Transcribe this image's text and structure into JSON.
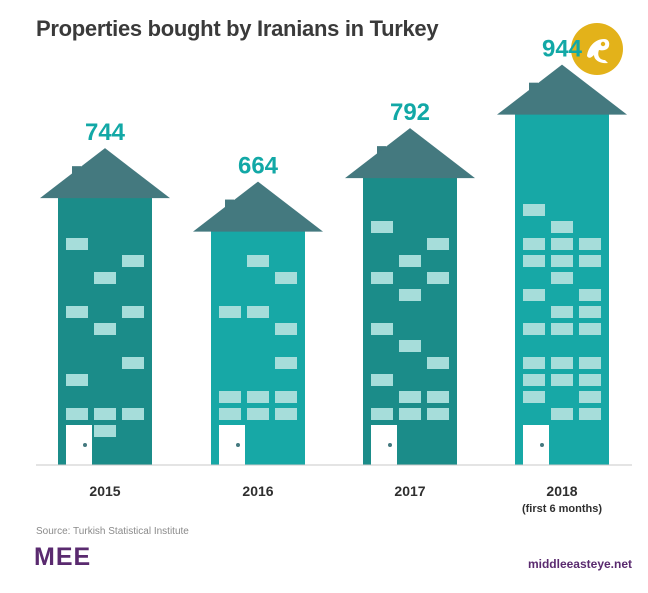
{
  "title": "Properties bought by Iranians in Turkey",
  "chart_data": {
    "type": "bar",
    "categories": [
      "2015",
      "2016",
      "2017",
      "2018"
    ],
    "category_notes": [
      "",
      "",
      "",
      "(first 6 months)"
    ],
    "values": [
      744,
      664,
      792,
      944
    ],
    "colors": {
      "value_label": "#12a8a6",
      "roof": "#44797f",
      "building_dark": "#1b8c89",
      "building_light": "#17a8a6",
      "window": "#a6ddda",
      "door": "#ffffff",
      "baseline": "#c8c8c8"
    }
  },
  "source": "Source: Turkish Statistical Institute",
  "brand": {
    "logo_text": "MEE",
    "site": "middleeasteye.net",
    "color": "#5a2a6f",
    "badge_color": "#e3b21a",
    "badge_icon": "stylized-mark-icon"
  }
}
